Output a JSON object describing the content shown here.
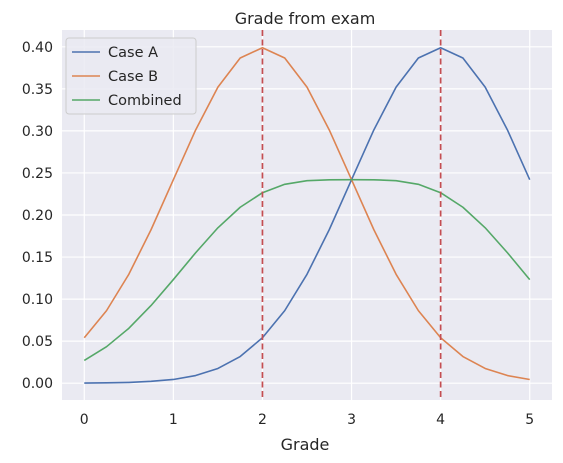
{
  "chart_data": {
    "type": "line",
    "title": "Grade from exam",
    "xlabel": "Grade",
    "ylabel": "",
    "xlim": [
      -0.25,
      5.25
    ],
    "ylim": [
      -0.02,
      0.42
    ],
    "xticks": [
      0,
      1,
      2,
      3,
      4,
      5
    ],
    "yticks": [
      0.0,
      0.05,
      0.1,
      0.15,
      0.2,
      0.25,
      0.3,
      0.35,
      0.4
    ],
    "ytick_labels": [
      "0.00",
      "0.05",
      "0.10",
      "0.15",
      "0.20",
      "0.25",
      "0.30",
      "0.35",
      "0.40"
    ],
    "grid": true,
    "legend_position": "top-left",
    "x": [
      0,
      0.25,
      0.5,
      0.75,
      1,
      1.25,
      1.5,
      1.75,
      2,
      2.25,
      2.5,
      2.75,
      3,
      3.25,
      3.5,
      3.75,
      4,
      4.25,
      4.5,
      4.75,
      5
    ],
    "series": [
      {
        "name": "Case A",
        "color": "#4c72b0",
        "values": [
          0.0001,
          0.0004,
          0.0009,
          0.0022,
          0.0044,
          0.0091,
          0.0175,
          0.0317,
          0.054,
          0.0863,
          0.1295,
          0.1826,
          0.242,
          0.3011,
          0.3521,
          0.3867,
          0.3989,
          0.3867,
          0.3521,
          0.3011,
          0.242
        ]
      },
      {
        "name": "Case B",
        "color": "#dd8452",
        "values": [
          0.054,
          0.0863,
          0.1295,
          0.1826,
          0.242,
          0.3011,
          0.3521,
          0.3867,
          0.3989,
          0.3867,
          0.3521,
          0.3011,
          0.242,
          0.1826,
          0.1295,
          0.0863,
          0.054,
          0.0317,
          0.0175,
          0.0091,
          0.0044
        ]
      },
      {
        "name": "Combined",
        "color": "#55a868",
        "values": [
          0.027,
          0.0434,
          0.0652,
          0.0924,
          0.1232,
          0.1551,
          0.1848,
          0.2092,
          0.2265,
          0.2365,
          0.2408,
          0.2419,
          0.242,
          0.2419,
          0.2408,
          0.2365,
          0.2265,
          0.2092,
          0.1848,
          0.1551,
          0.1232
        ]
      }
    ],
    "vlines": [
      {
        "x": 2,
        "color": "#c44e52",
        "style": "dashed"
      },
      {
        "x": 4,
        "color": "#c44e52",
        "style": "dashed"
      }
    ]
  }
}
